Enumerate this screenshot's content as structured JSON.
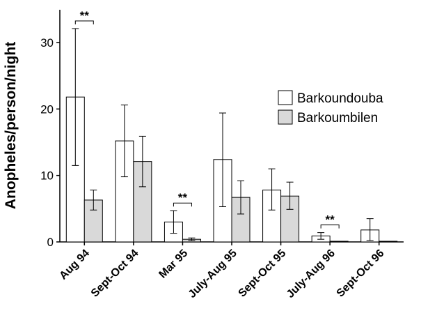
{
  "chart_data": {
    "type": "bar",
    "ylabel": "Anopheles/person/night",
    "xlabel": "",
    "ylim": [
      0,
      35
    ],
    "yticks": [
      0,
      10,
      20,
      30
    ],
    "grid": false,
    "legend_position": "right",
    "categories": [
      "Aug 94",
      "Sept-Oct 94",
      "Mar 95",
      "July-Aug 95",
      "Sept-Oct 95",
      "July-Aug 96",
      "Sept-Oct 96"
    ],
    "series": [
      {
        "name": "Barkoundouba",
        "color": "#ffffff",
        "values": [
          21.8,
          15.2,
          3.0,
          12.4,
          7.8,
          0.9,
          1.8
        ],
        "err_low": [
          11.5,
          9.8,
          1.3,
          5.3,
          4.8,
          0.4,
          0.2
        ],
        "err_high": [
          32.1,
          20.6,
          4.7,
          19.4,
          11.0,
          1.4,
          3.5
        ]
      },
      {
        "name": "Barkoumbilen",
        "color": "#d9d9d9",
        "values": [
          6.3,
          12.1,
          0.4,
          6.7,
          6.9,
          0.1,
          0.1
        ],
        "err_low": [
          4.8,
          8.3,
          0.2,
          4.2,
          4.9,
          0.1,
          0.1
        ],
        "err_high": [
          7.8,
          15.9,
          0.6,
          9.2,
          9.0,
          0.1,
          0.1
        ]
      }
    ],
    "annotations": [
      {
        "category_index": 0,
        "text": "**"
      },
      {
        "category_index": 2,
        "text": "**"
      },
      {
        "category_index": 5,
        "text": "**"
      }
    ]
  }
}
